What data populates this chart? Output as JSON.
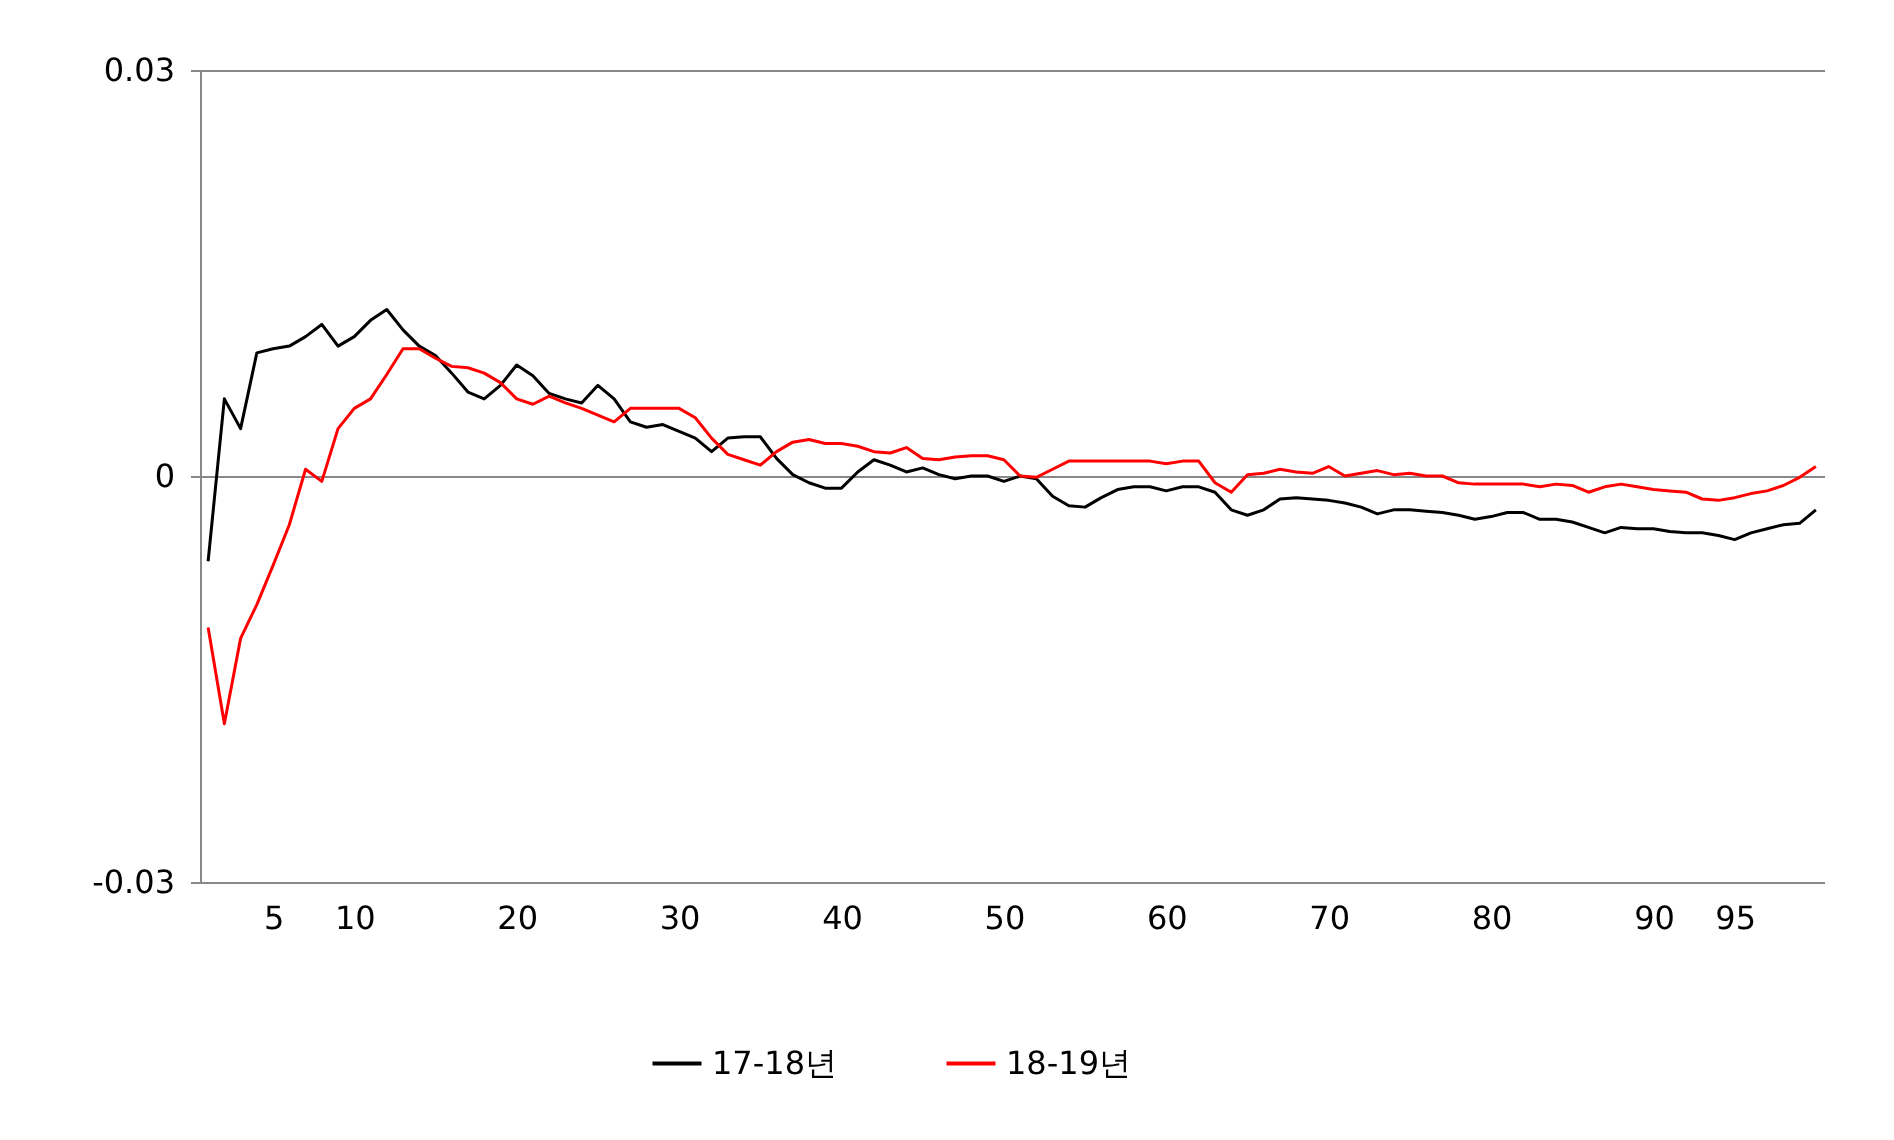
{
  "chart_data": {
    "type": "line",
    "categories": [
      null,
      null,
      null,
      null,
      "5",
      null,
      null,
      null,
      null,
      "10",
      null,
      null,
      null,
      null,
      null,
      null,
      null,
      null,
      null,
      "20",
      null,
      null,
      null,
      null,
      null,
      null,
      null,
      null,
      null,
      "30",
      null,
      null,
      null,
      null,
      null,
      null,
      null,
      null,
      null,
      "40",
      null,
      null,
      null,
      null,
      null,
      null,
      null,
      null,
      null,
      "50",
      null,
      null,
      null,
      null,
      null,
      null,
      null,
      null,
      null,
      "60",
      null,
      null,
      null,
      null,
      null,
      null,
      null,
      null,
      null,
      "70",
      null,
      null,
      null,
      null,
      null,
      null,
      null,
      null,
      null,
      "80",
      null,
      null,
      null,
      null,
      null,
      null,
      null,
      null,
      null,
      "90",
      null,
      null,
      null,
      null,
      "95",
      null,
      null,
      null,
      null,
      null
    ],
    "series": [
      {
        "name": "17-18년",
        "color": "#000000",
        "values": [
          -0.0063,
          0.0057,
          0.0035,
          0.0091,
          0.0094,
          0.0096,
          0.0103,
          0.0112,
          0.0096,
          0.0103,
          0.0115,
          0.0123,
          0.0108,
          0.0096,
          0.0089,
          0.0076,
          0.0062,
          0.0057,
          0.0067,
          0.0082,
          0.0074,
          0.0061,
          0.0057,
          0.0054,
          0.0067,
          0.0057,
          0.004,
          0.0036,
          0.0038,
          0.0033,
          0.0028,
          0.0018,
          0.0028,
          0.0029,
          0.0029,
          0.0013,
          0.0001,
          -0.0005,
          -0.0009,
          -0.0009,
          0.0003,
          0.0012,
          0.0008,
          0.0003,
          0.0006,
          0.0001,
          -0.0002,
          0,
          0,
          -0.0004,
          0,
          -0.0002,
          -0.0015,
          -0.0022,
          -0.0023,
          -0.0016,
          -0.001,
          -0.0008,
          -0.0008,
          -0.0011,
          -0.0008,
          -0.0008,
          -0.0012,
          -0.0025,
          -0.0029,
          -0.0025,
          -0.0017,
          -0.0016,
          -0.0017,
          -0.0018,
          -0.002,
          -0.0023,
          -0.0028,
          -0.0025,
          -0.0025,
          -0.0026,
          -0.0027,
          -0.0029,
          -0.0032,
          -0.003,
          -0.0027,
          -0.0027,
          -0.0032,
          -0.0032,
          -0.0034,
          -0.0038,
          -0.0042,
          -0.0038,
          -0.0039,
          -0.0039,
          -0.0041,
          -0.0042,
          -0.0042,
          -0.0044,
          -0.0047,
          -0.0042,
          -0.0039,
          -0.0036,
          -0.0035,
          -0.0025
        ]
      },
      {
        "name": "18-19년",
        "color": "#ff0000",
        "values": [
          -0.0112,
          -0.0183,
          -0.012,
          -0.0095,
          -0.0066,
          -0.0036,
          0.0005,
          -0.0004,
          0.0035,
          0.005,
          0.0057,
          0.0075,
          0.0094,
          0.0094,
          0.0087,
          0.0081,
          0.008,
          0.0076,
          0.0069,
          0.0057,
          0.0053,
          0.0059,
          0.0054,
          0.005,
          0.0045,
          0.004,
          0.005,
          0.005,
          0.005,
          0.005,
          0.0043,
          0.0028,
          0.0016,
          0.0012,
          0.0008,
          0.0018,
          0.0025,
          0.0027,
          0.0024,
          0.0024,
          0.0022,
          0.0018,
          0.0017,
          0.0021,
          0.0013,
          0.0012,
          0.0014,
          0.0015,
          0.0015,
          0.0012,
          0,
          -0.0001,
          0.0005,
          0.0011,
          0.0011,
          0.0011,
          0.0011,
          0.0011,
          0.0011,
          0.0009,
          0.0011,
          0.0011,
          -0.0005,
          -0.0012,
          0.0001,
          0.0002,
          0.0005,
          0.0003,
          0.0002,
          0.0007,
          0,
          0.0002,
          0.0004,
          0.0001,
          0.0002,
          0,
          0,
          -0.0005,
          -0.0006,
          -0.0006,
          -0.0006,
          -0.0006,
          -0.0008,
          -0.0006,
          -0.0007,
          -0.0012,
          -0.0008,
          -0.0006,
          -0.0008,
          -0.001,
          -0.0011,
          -0.0012,
          -0.0017,
          -0.0018,
          -0.0016,
          -0.0013,
          -0.0011,
          -0.0007,
          -0.0001,
          0.0007
        ]
      }
    ],
    "ylim": [
      -0.03,
      0.03
    ],
    "yticks": [
      -0.03,
      0,
      0.03
    ],
    "grid": "y",
    "legend": "bottom"
  }
}
